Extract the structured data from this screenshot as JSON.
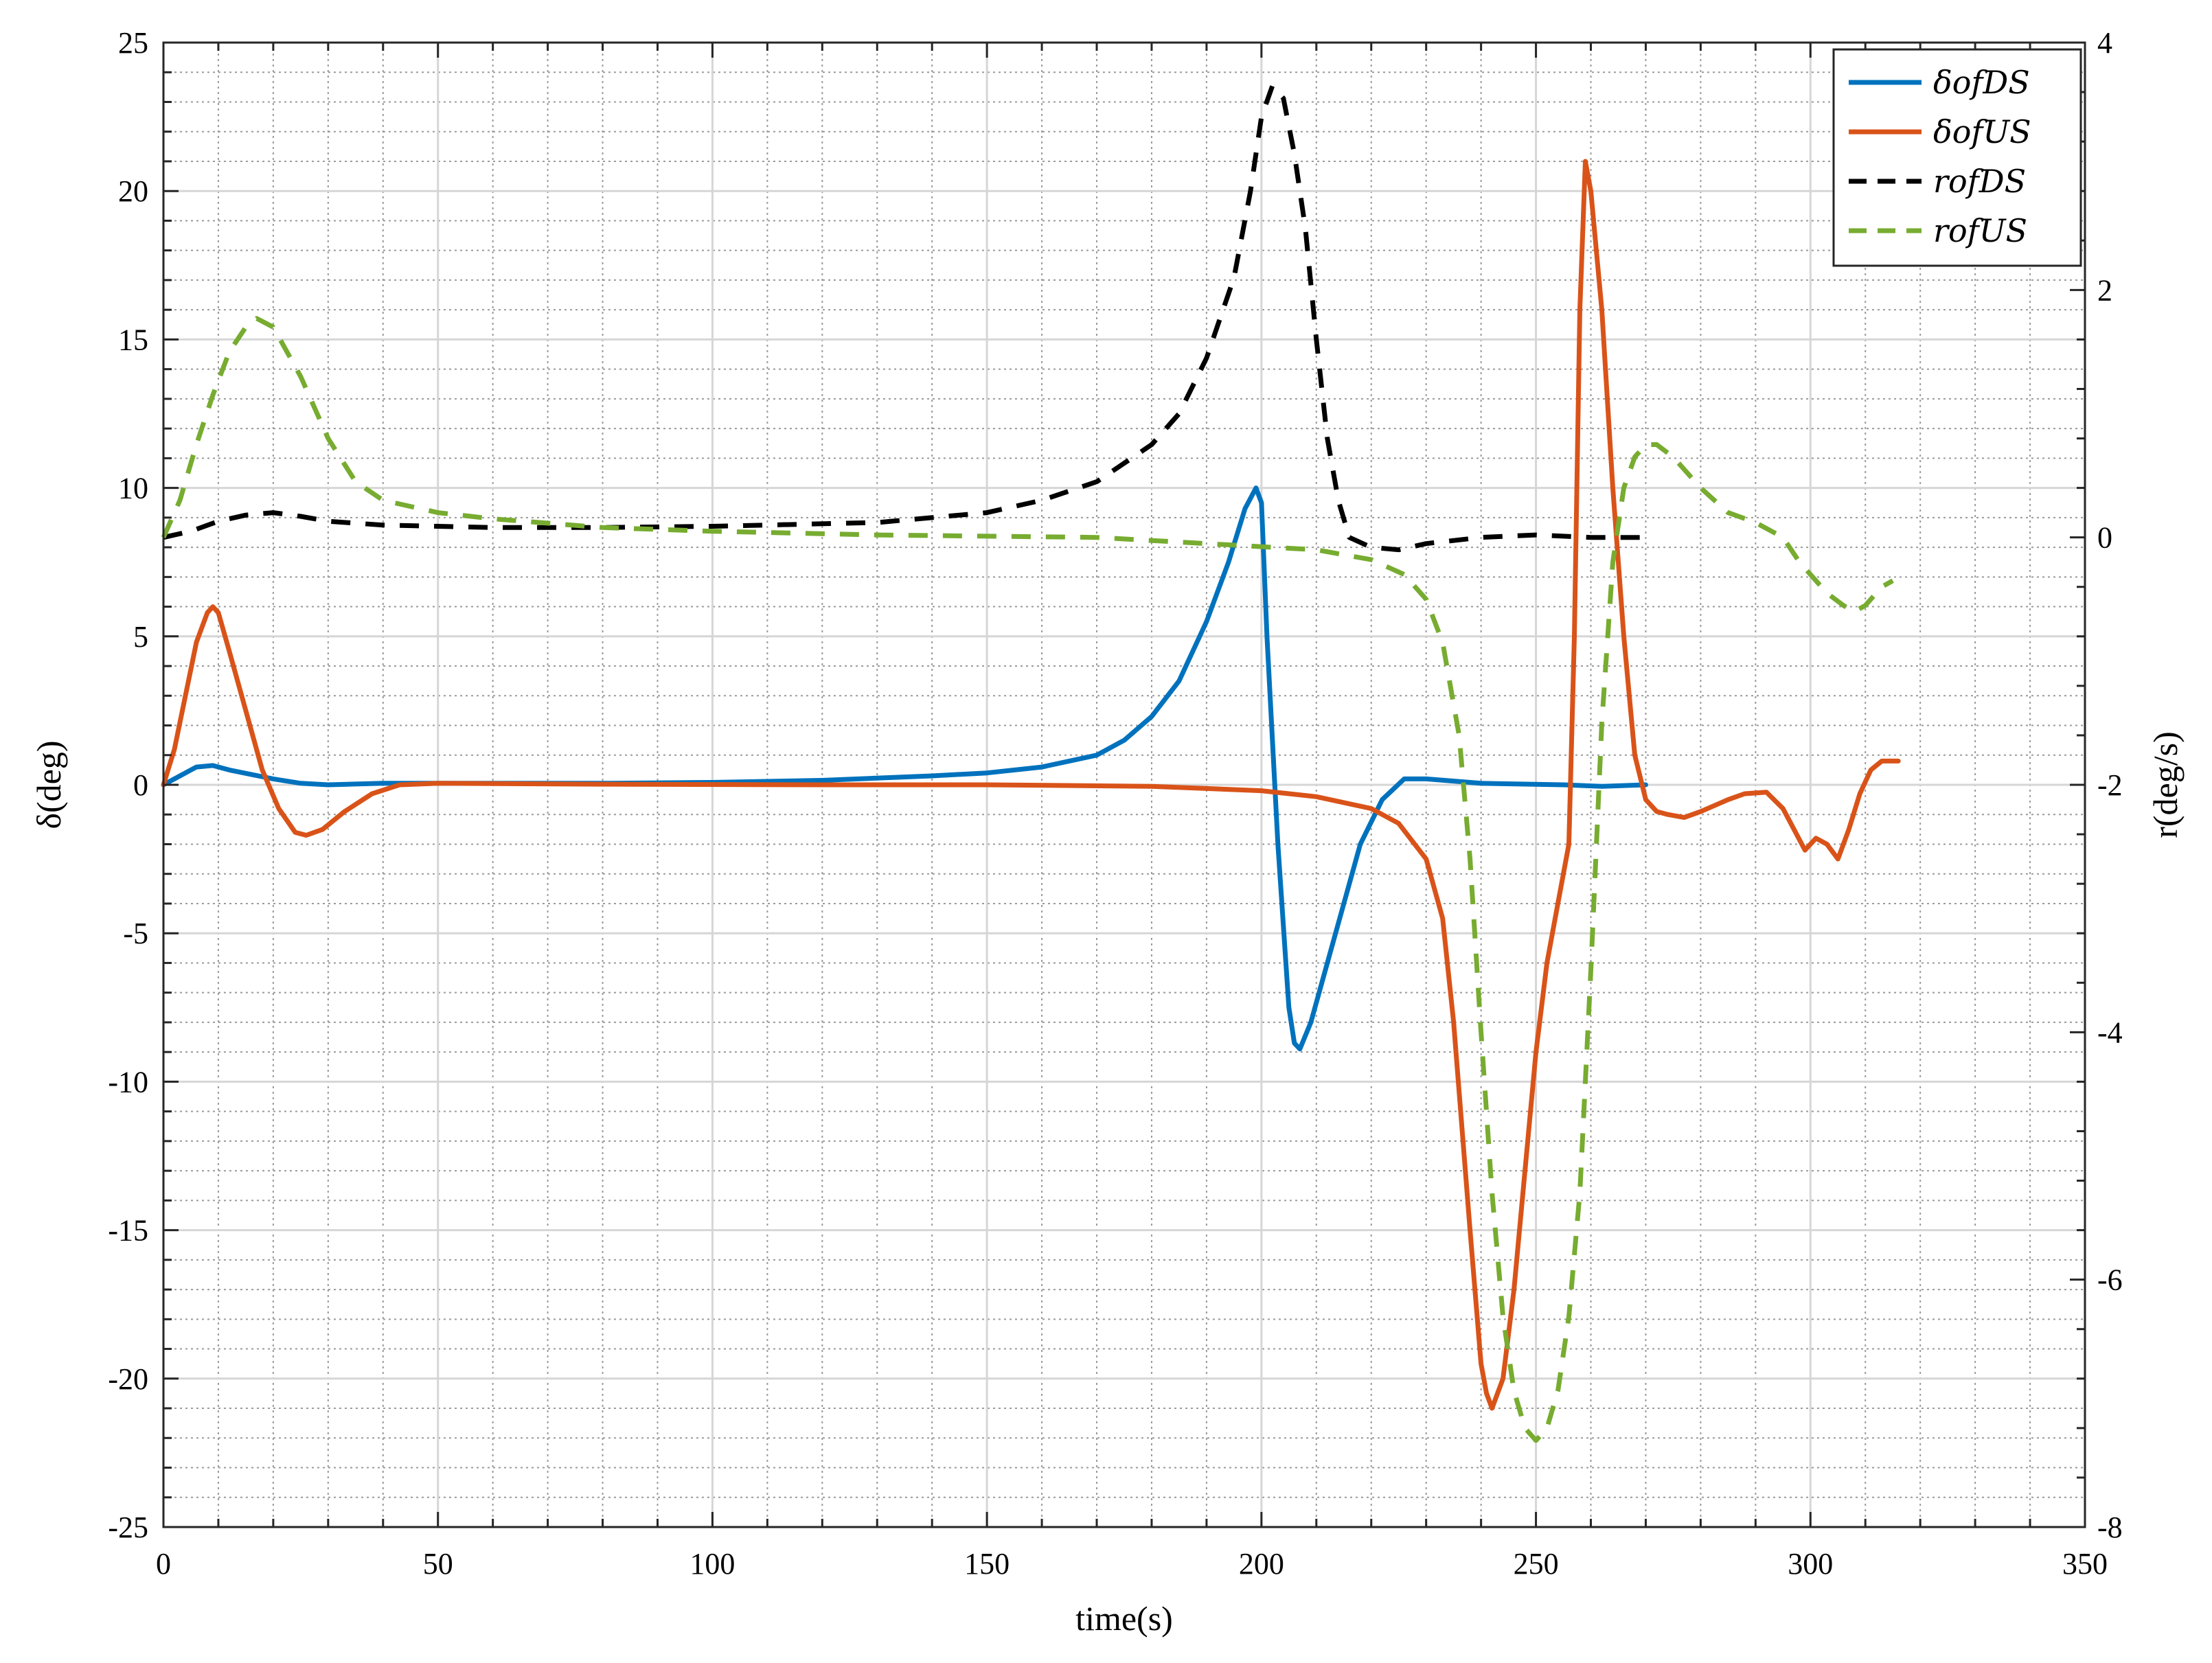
{
  "chart_data": {
    "type": "line",
    "xlabel": "time(s)",
    "ylabel_left": "δ(deg)",
    "ylabel_right": "r(deg/s)",
    "xlim": [
      0,
      350
    ],
    "ylim_left": [
      -25,
      25
    ],
    "ylim_right": [
      -8,
      4
    ],
    "x_ticks": [
      "0",
      "50",
      "100",
      "150",
      "200",
      "250",
      "300",
      "350"
    ],
    "y_left_ticks": [
      "25",
      "20",
      "15",
      "10",
      "5",
      "0",
      "-5",
      "-10",
      "-15",
      "-20",
      "-25"
    ],
    "y_right_ticks": [
      "4",
      "2",
      "0",
      "-2",
      "-4",
      "-6",
      "-8"
    ],
    "grid": "major and minor",
    "legend_position": "top-right",
    "series": [
      {
        "name": "δofDS",
        "axis": "left",
        "color": "#0072BD",
        "style": "solid",
        "points": [
          [
            0,
            0
          ],
          [
            3,
            0.3
          ],
          [
            6,
            0.6
          ],
          [
            9,
            0.65
          ],
          [
            12,
            0.5
          ],
          [
            16,
            0.35
          ],
          [
            20,
            0.2
          ],
          [
            25,
            0.05
          ],
          [
            30,
            0
          ],
          [
            40,
            0.05
          ],
          [
            60,
            0.05
          ],
          [
            80,
            0.05
          ],
          [
            100,
            0.08
          ],
          [
            120,
            0.15
          ],
          [
            140,
            0.3
          ],
          [
            150,
            0.4
          ],
          [
            160,
            0.6
          ],
          [
            170,
            1.0
          ],
          [
            175,
            1.5
          ],
          [
            180,
            2.3
          ],
          [
            185,
            3.5
          ],
          [
            190,
            5.5
          ],
          [
            194,
            7.5
          ],
          [
            197,
            9.3
          ],
          [
            199,
            10
          ],
          [
            200,
            9.5
          ],
          [
            201,
            5
          ],
          [
            203,
            -2
          ],
          [
            205,
            -7.5
          ],
          [
            206,
            -8.7
          ],
          [
            207,
            -8.9
          ],
          [
            209,
            -8
          ],
          [
            212,
            -6
          ],
          [
            215,
            -4
          ],
          [
            218,
            -2
          ],
          [
            222,
            -0.5
          ],
          [
            226,
            0.2
          ],
          [
            230,
            0.2
          ],
          [
            240,
            0.05
          ],
          [
            255,
            0
          ],
          [
            262,
            -0.05
          ],
          [
            270,
            0
          ]
        ]
      },
      {
        "name": "δofUS",
        "axis": "left",
        "color": "#D95319",
        "style": "solid",
        "points": [
          [
            0,
            0
          ],
          [
            2,
            1.2
          ],
          [
            4,
            3
          ],
          [
            6,
            4.8
          ],
          [
            8,
            5.8
          ],
          [
            9,
            6.0
          ],
          [
            10,
            5.8
          ],
          [
            12,
            4.5
          ],
          [
            15,
            2.5
          ],
          [
            18,
            0.5
          ],
          [
            21,
            -0.8
          ],
          [
            24,
            -1.6
          ],
          [
            26,
            -1.7
          ],
          [
            29,
            -1.5
          ],
          [
            33,
            -0.9
          ],
          [
            38,
            -0.3
          ],
          [
            43,
            0
          ],
          [
            50,
            0.05
          ],
          [
            80,
            0.02
          ],
          [
            120,
            0
          ],
          [
            150,
            0
          ],
          [
            180,
            -0.05
          ],
          [
            200,
            -0.2
          ],
          [
            210,
            -0.4
          ],
          [
            220,
            -0.8
          ],
          [
            225,
            -1.3
          ],
          [
            230,
            -2.5
          ],
          [
            233,
            -4.5
          ],
          [
            235,
            -8
          ],
          [
            238,
            -15
          ],
          [
            240,
            -19.5
          ],
          [
            241,
            -20.5
          ],
          [
            242,
            -21
          ],
          [
            244,
            -20
          ],
          [
            246,
            -17
          ],
          [
            248,
            -13
          ],
          [
            250,
            -9
          ],
          [
            252,
            -6
          ],
          [
            254,
            -4
          ],
          [
            256,
            -2
          ],
          [
            257,
            5
          ],
          [
            258,
            16
          ],
          [
            259,
            21
          ],
          [
            260,
            20
          ],
          [
            262,
            16
          ],
          [
            264,
            10
          ],
          [
            266,
            5
          ],
          [
            268,
            1
          ],
          [
            270,
            -0.5
          ],
          [
            272,
            -0.9
          ],
          [
            274,
            -1.0
          ],
          [
            277,
            -1.1
          ],
          [
            280,
            -0.9
          ],
          [
            285,
            -0.5
          ],
          [
            288,
            -0.3
          ],
          [
            292,
            -0.25
          ],
          [
            295,
            -0.8
          ],
          [
            297,
            -1.5
          ],
          [
            299,
            -2.2
          ],
          [
            301,
            -1.8
          ],
          [
            303,
            -2.0
          ],
          [
            305,
            -2.5
          ],
          [
            307,
            -1.5
          ],
          [
            309,
            -0.3
          ],
          [
            311,
            0.5
          ],
          [
            313,
            0.8
          ],
          [
            316,
            0.8
          ]
        ]
      },
      {
        "name": "rofDS",
        "axis": "right",
        "color": "#000000",
        "style": "dashed",
        "points": [
          [
            0,
            0
          ],
          [
            5,
            0.05
          ],
          [
            10,
            0.13
          ],
          [
            15,
            0.18
          ],
          [
            20,
            0.2
          ],
          [
            25,
            0.17
          ],
          [
            30,
            0.13
          ],
          [
            40,
            0.1
          ],
          [
            60,
            0.08
          ],
          [
            80,
            0.08
          ],
          [
            100,
            0.09
          ],
          [
            130,
            0.12
          ],
          [
            150,
            0.2
          ],
          [
            160,
            0.3
          ],
          [
            170,
            0.45
          ],
          [
            180,
            0.75
          ],
          [
            185,
            1.0
          ],
          [
            190,
            1.45
          ],
          [
            195,
            2.1
          ],
          [
            198,
            2.8
          ],
          [
            200,
            3.4
          ],
          [
            202,
            3.65
          ],
          [
            204,
            3.55
          ],
          [
            206,
            3.1
          ],
          [
            208,
            2.5
          ],
          [
            210,
            1.6
          ],
          [
            212,
            0.8
          ],
          [
            214,
            0.3
          ],
          [
            216,
            0
          ],
          [
            220,
            -0.08
          ],
          [
            225,
            -0.1
          ],
          [
            230,
            -0.05
          ],
          [
            240,
            0
          ],
          [
            250,
            0.02
          ],
          [
            260,
            0
          ],
          [
            270,
            0
          ]
        ]
      },
      {
        "name": "rofUS",
        "axis": "right",
        "color": "#77AC30",
        "style": "dashed",
        "points": [
          [
            0,
            0
          ],
          [
            3,
            0.3
          ],
          [
            6,
            0.75
          ],
          [
            9,
            1.15
          ],
          [
            12,
            1.5
          ],
          [
            15,
            1.7
          ],
          [
            17,
            1.77
          ],
          [
            20,
            1.7
          ],
          [
            25,
            1.3
          ],
          [
            30,
            0.8
          ],
          [
            35,
            0.45
          ],
          [
            40,
            0.3
          ],
          [
            50,
            0.2
          ],
          [
            60,
            0.15
          ],
          [
            80,
            0.08
          ],
          [
            100,
            0.05
          ],
          [
            130,
            0.02
          ],
          [
            170,
            0
          ],
          [
            190,
            -0.05
          ],
          [
            210,
            -0.1
          ],
          [
            220,
            -0.18
          ],
          [
            226,
            -0.3
          ],
          [
            230,
            -0.5
          ],
          [
            233,
            -0.85
          ],
          [
            236,
            -1.6
          ],
          [
            238,
            -2.6
          ],
          [
            240,
            -4
          ],
          [
            242,
            -5.3
          ],
          [
            244,
            -6.3
          ],
          [
            246,
            -6.9
          ],
          [
            248,
            -7.2
          ],
          [
            250,
            -7.3
          ],
          [
            252,
            -7.2
          ],
          [
            254,
            -6.9
          ],
          [
            256,
            -6.3
          ],
          [
            258,
            -5.3
          ],
          [
            260,
            -3.5
          ],
          [
            262,
            -1.5
          ],
          [
            264,
            -0.2
          ],
          [
            266,
            0.4
          ],
          [
            268,
            0.65
          ],
          [
            270,
            0.75
          ],
          [
            272,
            0.75
          ],
          [
            275,
            0.65
          ],
          [
            280,
            0.4
          ],
          [
            285,
            0.2
          ],
          [
            290,
            0.12
          ],
          [
            295,
            0
          ],
          [
            298,
            -0.2
          ],
          [
            300,
            -0.3
          ],
          [
            303,
            -0.45
          ],
          [
            306,
            -0.55
          ],
          [
            308,
            -0.6
          ],
          [
            310,
            -0.55
          ],
          [
            313,
            -0.4
          ],
          [
            315,
            -0.35
          ]
        ]
      }
    ]
  }
}
